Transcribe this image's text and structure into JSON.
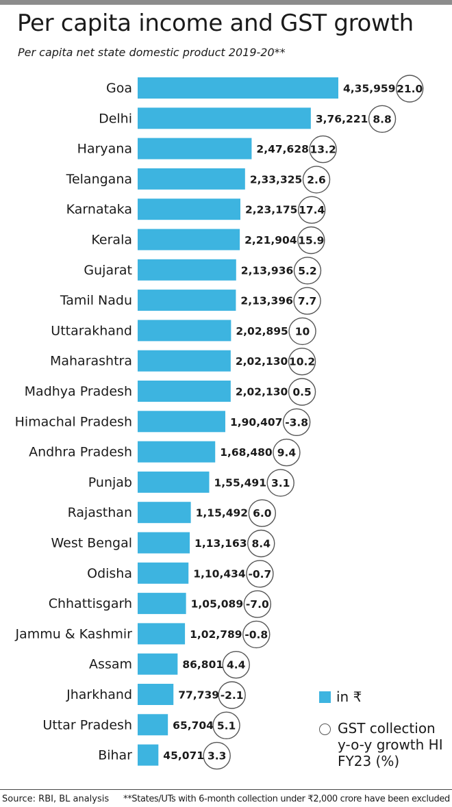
{
  "title": "Per capita income and GST growth",
  "subtitle": "Per capita net state domestic product 2019-20**",
  "legend": {
    "bar_label": "in ₹",
    "circle_label": "GST collection y-o-y growth HI FY23 (%)"
  },
  "colors": {
    "bar": "#3db4e0",
    "circle_stroke": "#555555"
  },
  "footer": {
    "source": "Source: RBI, BL analysis",
    "footnote": "**States/UTs with 6-month collection under ₹2,000 crore have been excluded"
  },
  "chart_data": {
    "type": "bar",
    "orientation": "horizontal",
    "title": "Per capita income and GST growth",
    "subtitle": "Per capita net state domestic product 2019-20**",
    "categories": [
      "Goa",
      "Delhi",
      "Haryana",
      "Telangana",
      "Karnataka",
      "Kerala",
      "Gujarat",
      "Tamil Nadu",
      "Uttarakhand",
      "Maharashtra",
      "Madhya Pradesh",
      "Himachal Pradesh",
      "Andhra Pradesh",
      "Punjab",
      "Rajasthan",
      "West Bengal",
      "Odisha",
      "Chhattisgarh",
      "Jammu & Kashmir",
      "Assam",
      "Jharkhand",
      "Uttar Pradesh",
      "Bihar"
    ],
    "series": [
      {
        "name": "in ₹",
        "values": [
          435959,
          376221,
          247628,
          233325,
          223175,
          221904,
          213936,
          213396,
          202895,
          202130,
          202130,
          190407,
          168480,
          155491,
          115492,
          113163,
          110434,
          105089,
          102789,
          86801,
          77739,
          65704,
          45071
        ],
        "labels": [
          "4,35,959",
          "3,76,221",
          "2,47,628",
          "2,33,325",
          "2,23,175",
          "2,21,904",
          "2,13,936",
          "2,13,396",
          "2,02,895",
          "2,02,130",
          "2,02,130",
          "1,90,407",
          "1,68,480",
          "1,55,491",
          "1,15,492",
          "1,13,163",
          "1,10,434",
          "1,05,089",
          "1,02,789",
          "86,801",
          "77,739",
          "65,704",
          "45,071"
        ]
      },
      {
        "name": "GST collection y-o-y growth HI FY23 (%)",
        "values": [
          21.0,
          8.8,
          13.2,
          2.6,
          17.4,
          15.9,
          5.2,
          7.7,
          10,
          10.2,
          0.5,
          -3.8,
          9.4,
          3.1,
          6.0,
          8.4,
          -0.7,
          -7.0,
          -0.8,
          4.4,
          -2.1,
          5.1,
          3.3
        ],
        "labels": [
          "21.0",
          "8.8",
          "13.2",
          "2.6",
          "17.4",
          "15.9",
          "5.2",
          "7.7",
          "10",
          "10.2",
          "0.5",
          "-3.8",
          "9.4",
          "3.1",
          "6.0",
          "8.4",
          "-0.7",
          "-7.0",
          "-0.8",
          "4.4",
          "-2.1",
          "5.1",
          "3.3"
        ]
      }
    ],
    "xlim": [
      0,
      435959
    ],
    "grid": false,
    "legend_position": "bottom-right"
  }
}
